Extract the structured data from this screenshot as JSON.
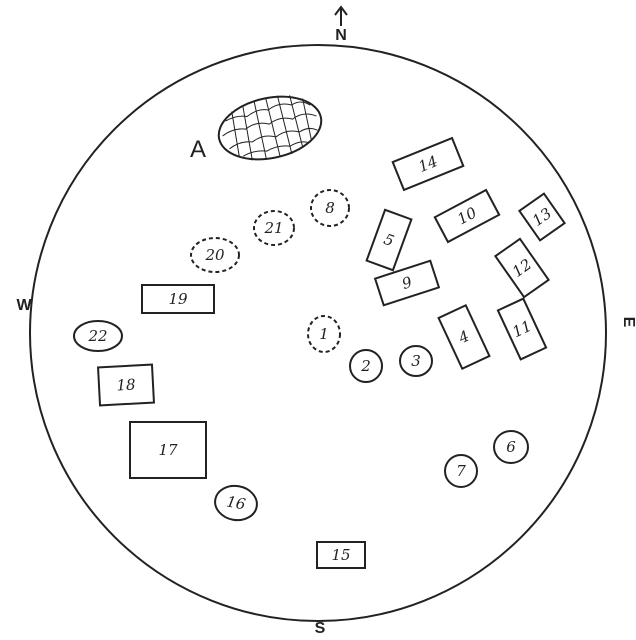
{
  "compass": {
    "north": "N",
    "south": "S",
    "east": "E",
    "west": "W"
  },
  "feature_a_label": "A",
  "stones": [
    {
      "id": "1",
      "label": "1",
      "shape": "oval",
      "outline": "dashed"
    },
    {
      "id": "2",
      "label": "2",
      "shape": "oval",
      "outline": "solid"
    },
    {
      "id": "3",
      "label": "3",
      "shape": "oval",
      "outline": "solid"
    },
    {
      "id": "4",
      "label": "4",
      "shape": "rect",
      "outline": "solid"
    },
    {
      "id": "5",
      "label": "5",
      "shape": "rect",
      "outline": "solid"
    },
    {
      "id": "6",
      "label": "6",
      "shape": "oval",
      "outline": "solid"
    },
    {
      "id": "7",
      "label": "7",
      "shape": "oval",
      "outline": "solid"
    },
    {
      "id": "8",
      "label": "8",
      "shape": "oval",
      "outline": "dashed"
    },
    {
      "id": "9",
      "label": "9",
      "shape": "rect",
      "outline": "solid"
    },
    {
      "id": "10",
      "label": "10",
      "shape": "rect",
      "outline": "solid"
    },
    {
      "id": "11",
      "label": "11",
      "shape": "rect",
      "outline": "solid"
    },
    {
      "id": "12",
      "label": "12",
      "shape": "rect",
      "outline": "solid"
    },
    {
      "id": "13",
      "label": "13",
      "shape": "rect",
      "outline": "solid"
    },
    {
      "id": "14",
      "label": "14",
      "shape": "rect",
      "outline": "solid"
    },
    {
      "id": "15",
      "label": "15",
      "shape": "rect",
      "outline": "solid"
    },
    {
      "id": "16",
      "label": "16",
      "shape": "oval",
      "outline": "solid"
    },
    {
      "id": "17",
      "label": "17",
      "shape": "rect",
      "outline": "solid"
    },
    {
      "id": "18",
      "label": "18",
      "shape": "rect",
      "outline": "solid"
    },
    {
      "id": "19",
      "label": "19",
      "shape": "rect",
      "outline": "solid"
    },
    {
      "id": "20",
      "label": "20",
      "shape": "oval",
      "outline": "dashed"
    },
    {
      "id": "21",
      "label": "21",
      "shape": "oval",
      "outline": "dashed"
    },
    {
      "id": "22",
      "label": "22",
      "shape": "oval",
      "outline": "solid"
    }
  ],
  "colors": {
    "ink": "#222222",
    "paper": "#ffffff"
  }
}
